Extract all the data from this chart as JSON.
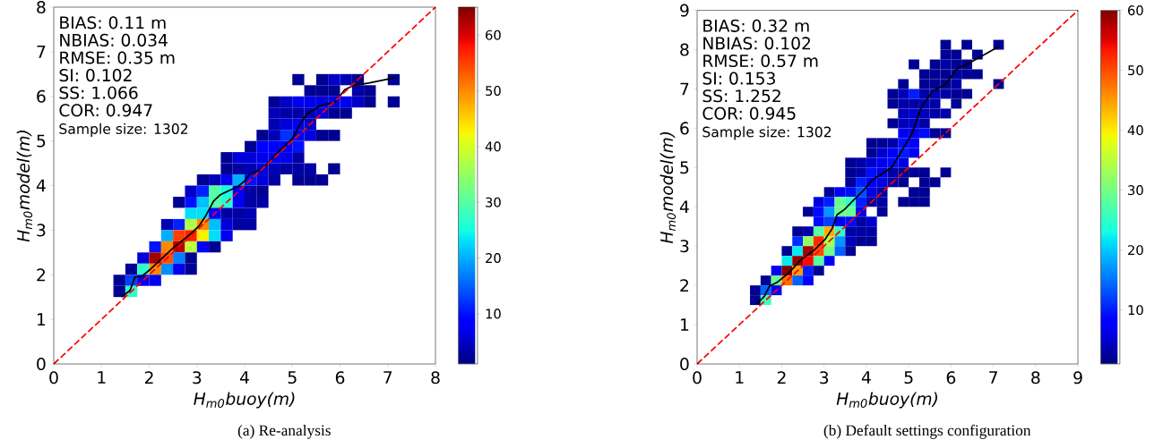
{
  "chart_data": [
    {
      "type": "heatmap",
      "title": "(a) Re-analysis",
      "xlabel": "H$_{m0}$buoy(m)",
      "ylabel": "H$_{m0}$model(m)",
      "annotations": [
        "BIAS: 0.11 m",
        "NBIAS: 0.034",
        "RMSE: 0.35 m",
        "SI: 0.102",
        "SS: 1.066",
        "COR: 0.947",
        "Sample size: 1302"
      ],
      "xlim": [
        0,
        8
      ],
      "ylim": [
        0,
        8
      ],
      "xticks": [
        0,
        1,
        2,
        3,
        4,
        5,
        6,
        7,
        8
      ],
      "yticks": [
        0,
        1,
        2,
        3,
        4,
        5,
        6,
        7,
        8
      ],
      "clim": [
        1,
        65
      ],
      "cticks": [
        10,
        20,
        30,
        40,
        50,
        60
      ],
      "x": [
        1.375,
        1.625,
        1.875,
        2.125,
        2.375,
        2.625,
        2.875,
        3.125,
        3.375,
        3.625,
        3.875,
        4.125,
        4.375,
        4.625,
        4.875,
        5.125,
        5.375,
        5.625,
        5.875,
        6.125,
        6.375,
        6.625,
        6.875,
        7.125
      ],
      "y": [
        6.375,
        6.125,
        5.875,
        5.625,
        5.375,
        5.125,
        4.875,
        4.625,
        4.375,
        4.125,
        3.875,
        3.625,
        3.375,
        3.125,
        2.875,
        2.625,
        2.375,
        2.125,
        1.875,
        1.625
      ],
      "cells": [
        [
          null,
          null,
          null,
          null,
          null,
          null,
          null,
          null,
          null,
          null,
          null,
          null,
          null,
          null,
          null,
          2,
          null,
          2,
          5,
          4,
          2,
          null,
          null,
          2
        ],
        [
          null,
          null,
          null,
          null,
          null,
          null,
          null,
          null,
          null,
          null,
          null,
          null,
          null,
          null,
          null,
          null,
          2,
          2,
          2,
          null,
          3,
          2,
          null,
          null
        ],
        [
          null,
          null,
          null,
          null,
          null,
          null,
          null,
          null,
          null,
          null,
          null,
          null,
          null,
          2,
          5,
          7,
          7,
          6,
          7,
          7,
          5,
          2,
          null,
          2
        ],
        [
          null,
          null,
          null,
          null,
          null,
          null,
          null,
          null,
          null,
          null,
          null,
          null,
          null,
          4,
          3,
          3,
          4,
          6,
          2,
          2,
          null,
          null,
          null,
          null
        ],
        [
          null,
          null,
          null,
          null,
          null,
          null,
          null,
          null,
          null,
          null,
          null,
          null,
          null,
          4,
          6,
          7,
          5,
          null,
          null,
          null,
          null,
          null,
          null,
          null
        ],
        [
          null,
          null,
          null,
          null,
          null,
          null,
          null,
          null,
          null,
          null,
          null,
          null,
          2,
          4,
          12,
          7,
          6,
          2,
          2,
          null,
          null,
          null,
          null,
          null
        ],
        [
          null,
          null,
          null,
          null,
          null,
          null,
          null,
          null,
          null,
          null,
          null,
          2,
          9,
          9,
          9,
          10,
          null,
          null,
          null,
          null,
          null,
          null,
          null,
          null
        ],
        [
          null,
          null,
          null,
          null,
          null,
          null,
          null,
          null,
          null,
          2,
          6,
          6,
          7,
          8,
          7,
          3,
          null,
          null,
          null,
          null,
          null,
          null,
          null,
          null
        ],
        [
          null,
          null,
          null,
          null,
          null,
          null,
          null,
          null,
          null,
          2,
          3,
          4,
          6,
          4,
          3,
          3,
          3,
          null,
          2,
          null,
          null,
          null,
          null,
          null
        ],
        [
          null,
          null,
          null,
          null,
          null,
          null,
          null,
          2,
          4,
          7,
          20,
          10,
          6,
          3,
          null,
          2,
          2,
          2,
          null,
          null,
          null,
          null,
          null,
          null
        ],
        [
          null,
          null,
          null,
          null,
          null,
          null,
          5,
          11,
          30,
          25,
          8,
          3,
          2,
          null,
          null,
          null,
          null,
          null,
          null,
          null,
          null,
          null,
          null,
          null
        ],
        [
          null,
          null,
          null,
          null,
          null,
          2,
          10,
          21,
          30,
          26,
          7,
          3,
          3,
          null,
          null,
          null,
          null,
          null,
          null,
          null,
          null,
          null,
          null,
          null
        ],
        [
          null,
          null,
          null,
          null,
          null,
          null,
          23,
          23,
          8,
          3,
          3,
          4,
          null,
          null,
          null,
          null,
          null,
          null,
          null,
          null,
          null,
          null,
          null,
          null
        ],
        [
          null,
          null,
          null,
          null,
          4,
          11,
          37,
          50,
          21,
          6,
          3,
          3,
          null,
          null,
          null,
          null,
          null,
          null,
          null,
          null,
          null,
          null,
          null,
          null
        ],
        [
          null,
          null,
          null,
          null,
          20,
          55,
          57,
          43,
          23,
          7,
          null,
          null,
          null,
          null,
          null,
          null,
          null,
          null,
          null,
          null,
          null,
          null,
          null,
          null
        ],
        [
          null,
          null,
          null,
          10,
          50,
          62,
          38,
          9,
          2,
          null,
          null,
          null,
          null,
          null,
          null,
          null,
          null,
          null,
          null,
          null,
          null,
          null,
          null,
          null
        ],
        [
          null,
          null,
          6,
          63,
          54,
          17,
          2,
          null,
          null,
          null,
          null,
          null,
          null,
          null,
          null,
          null,
          null,
          null,
          null,
          null,
          null,
          null,
          null,
          null
        ],
        [
          null,
          2,
          27,
          50,
          18,
          7,
          2,
          null,
          null,
          null,
          null,
          null,
          null,
          null,
          null,
          null,
          null,
          null,
          null,
          null,
          null,
          null,
          null,
          null
        ],
        [
          2,
          13,
          7,
          7,
          null,
          null,
          null,
          null,
          null,
          null,
          null,
          null,
          null,
          null,
          null,
          null,
          null,
          null,
          null,
          null,
          null,
          null,
          null,
          null
        ],
        [
          2,
          27,
          null,
          null,
          null,
          null,
          null,
          null,
          null,
          null,
          null,
          null,
          null,
          null,
          null,
          null,
          null,
          null,
          null,
          null,
          null,
          null,
          null,
          null
        ]
      ],
      "series": [
        {
          "type": "line",
          "color": "#000000",
          "x": [
            1.42,
            1.6,
            1.7,
            1.85,
            2.0,
            2.2,
            2.5,
            2.85,
            3.05,
            3.2,
            3.35,
            3.5,
            3.7,
            3.85,
            4.0,
            4.1,
            4.4,
            4.7,
            5.0,
            5.15,
            5.3,
            5.6,
            5.9,
            6.1,
            6.3,
            6.6,
            7.15
          ],
          "values": [
            1.5,
            1.65,
            1.95,
            1.97,
            2.1,
            2.3,
            2.6,
            2.9,
            3.1,
            3.35,
            3.65,
            3.8,
            3.9,
            3.97,
            4.1,
            4.25,
            4.4,
            4.75,
            5.05,
            5.35,
            5.6,
            5.8,
            5.87,
            6.15,
            6.25,
            6.3,
            6.42
          ]
        },
        {
          "type": "line",
          "color": "#ff0000",
          "line_style": "dashed",
          "x": [
            0,
            8
          ],
          "values": [
            0,
            8
          ]
        }
      ]
    },
    {
      "type": "heatmap",
      "title": "(b) Default settings configuration",
      "xlabel": "H$_{m0}$buoy(m)",
      "ylabel": "H$_{m0}$model(m)",
      "annotations": [
        "BIAS: 0.32 m",
        "NBIAS: 0.102",
        "RMSE: 0.57 m",
        "SI: 0.153",
        "SS: 1.252",
        "COR: 0.945",
        "Sample size: 1302"
      ],
      "xlim": [
        0,
        9
      ],
      "ylim": [
        0,
        9
      ],
      "xticks": [
        0,
        1,
        2,
        3,
        4,
        5,
        6,
        7,
        8,
        9
      ],
      "yticks": [
        0,
        1,
        2,
        3,
        4,
        5,
        6,
        7,
        8,
        9
      ],
      "clim": [
        1,
        60
      ],
      "cticks": [
        10,
        20,
        30,
        40,
        50,
        60
      ],
      "x": [
        1.375,
        1.625,
        1.875,
        2.125,
        2.375,
        2.625,
        2.875,
        3.125,
        3.375,
        3.625,
        3.875,
        4.125,
        4.375,
        4.625,
        4.875,
        5.125,
        5.375,
        5.625,
        5.875,
        6.125,
        6.375,
        6.625,
        6.875,
        7.125
      ],
      "y": [
        8.125,
        7.875,
        7.625,
        7.375,
        7.125,
        6.875,
        6.625,
        6.375,
        6.125,
        5.875,
        5.625,
        5.375,
        5.125,
        4.875,
        4.625,
        4.375,
        4.125,
        3.875,
        3.625,
        3.375,
        3.125,
        2.875,
        2.625,
        2.375,
        2.125,
        1.875,
        1.625
      ],
      "cells": [
        [
          null,
          null,
          null,
          null,
          null,
          null,
          null,
          null,
          null,
          null,
          null,
          null,
          null,
          null,
          null,
          null,
          null,
          null,
          2,
          null,
          2,
          null,
          null,
          2
        ],
        [
          null,
          null,
          null,
          null,
          null,
          null,
          null,
          null,
          null,
          null,
          null,
          null,
          null,
          null,
          null,
          null,
          null,
          null,
          2,
          2,
          null,
          2,
          null,
          null
        ],
        [
          null,
          null,
          null,
          null,
          null,
          null,
          null,
          null,
          null,
          null,
          null,
          null,
          null,
          null,
          null,
          2,
          null,
          2,
          3,
          2,
          2,
          null,
          null,
          null
        ],
        [
          null,
          null,
          null,
          null,
          null,
          null,
          null,
          null,
          null,
          null,
          null,
          null,
          null,
          null,
          null,
          null,
          2,
          2,
          2,
          3,
          2,
          2,
          null,
          null
        ],
        [
          null,
          null,
          null,
          null,
          null,
          null,
          null,
          null,
          null,
          null,
          null,
          null,
          null,
          null,
          2,
          null,
          2,
          2,
          2,
          3,
          null,
          null,
          null,
          2
        ],
        [
          null,
          null,
          null,
          null,
          null,
          null,
          null,
          null,
          null,
          null,
          null,
          null,
          null,
          2,
          4,
          10,
          3,
          4,
          3,
          2,
          2,
          null,
          null,
          null
        ],
        [
          null,
          null,
          null,
          null,
          null,
          null,
          null,
          null,
          null,
          null,
          null,
          null,
          null,
          2,
          3,
          3,
          4,
          3,
          null,
          2,
          null,
          null,
          null,
          null
        ],
        [
          null,
          null,
          null,
          null,
          null,
          null,
          null,
          null,
          null,
          null,
          null,
          null,
          null,
          null,
          4,
          5,
          4,
          3,
          3,
          null,
          null,
          null,
          null,
          null
        ],
        [
          null,
          null,
          null,
          null,
          null,
          null,
          null,
          null,
          null,
          null,
          null,
          null,
          null,
          2,
          4,
          5,
          3,
          null,
          null,
          null,
          null,
          null,
          null,
          null
        ],
        [
          null,
          null,
          null,
          null,
          null,
          null,
          null,
          null,
          null,
          null,
          null,
          null,
          null,
          null,
          7,
          6,
          9,
          2,
          2,
          null,
          null,
          null,
          null,
          null
        ],
        [
          null,
          null,
          null,
          null,
          null,
          null,
          null,
          null,
          null,
          null,
          null,
          2,
          2,
          3,
          9,
          8,
          null,
          null,
          null,
          null,
          null,
          null,
          null,
          null
        ],
        [
          null,
          null,
          null,
          null,
          null,
          null,
          null,
          null,
          null,
          null,
          null,
          2,
          5,
          7,
          10,
          7,
          null,
          null,
          null,
          null,
          null,
          null,
          null,
          null
        ],
        [
          null,
          null,
          null,
          null,
          null,
          null,
          null,
          null,
          null,
          2,
          3,
          5,
          7,
          9,
          6,
          null,
          null,
          null,
          null,
          null,
          null,
          null,
          null,
          null
        ],
        [
          null,
          null,
          null,
          null,
          null,
          null,
          null,
          null,
          null,
          2,
          3,
          9,
          6,
          3,
          2,
          2,
          2,
          null,
          2,
          null,
          null,
          null,
          null,
          null
        ],
        [
          null,
          null,
          null,
          null,
          null,
          null,
          null,
          null,
          null,
          2,
          10,
          8,
          6,
          3,
          2,
          null,
          2,
          2,
          null,
          null,
          null,
          null,
          null,
          null
        ],
        [
          null,
          null,
          null,
          null,
          null,
          null,
          null,
          2,
          7,
          9,
          13,
          6,
          3,
          null,
          null,
          2,
          2,
          null,
          null,
          null,
          null,
          null,
          null,
          null
        ],
        [
          null,
          null,
          null,
          null,
          null,
          null,
          6,
          10,
          29,
          25,
          10,
          3,
          3,
          null,
          2,
          2,
          2,
          null,
          null,
          null,
          null,
          null,
          null,
          null
        ],
        [
          null,
          null,
          null,
          null,
          null,
          2,
          9,
          17,
          29,
          29,
          7,
          null,
          2,
          null,
          null,
          null,
          null,
          null,
          null,
          null,
          null,
          null,
          null,
          null
        ],
        [
          null,
          null,
          null,
          null,
          null,
          null,
          9,
          12,
          7,
          9,
          3,
          5,
          null,
          null,
          null,
          null,
          null,
          null,
          null,
          null,
          null,
          null,
          null,
          null
        ],
        [
          null,
          null,
          null,
          null,
          2,
          3,
          28,
          44,
          25,
          3,
          3,
          3,
          null,
          null,
          null,
          null,
          null,
          null,
          null,
          null,
          null,
          null,
          null,
          null
        ],
        [
          null,
          null,
          null,
          null,
          11,
          32,
          52,
          34,
          17,
          4,
          2,
          2,
          null,
          null,
          null,
          null,
          null,
          null,
          null,
          null,
          null,
          null,
          null,
          null
        ],
        [
          null,
          null,
          null,
          2,
          22,
          58,
          50,
          30,
          14,
          2,
          null,
          null,
          null,
          null,
          null,
          null,
          null,
          null,
          null,
          null,
          null,
          null,
          null,
          null
        ],
        [
          null,
          null,
          null,
          22,
          59,
          54,
          28,
          7,
          null,
          null,
          null,
          null,
          null,
          null,
          null,
          null,
          null,
          null,
          null,
          null,
          null,
          null,
          null,
          null
        ],
        [
          null,
          null,
          7,
          60,
          45,
          10,
          2,
          null,
          null,
          null,
          null,
          null,
          null,
          null,
          null,
          null,
          null,
          null,
          null,
          null,
          null,
          null,
          null,
          null
        ],
        [
          null,
          2,
          29,
          48,
          14,
          8,
          null,
          null,
          null,
          null,
          null,
          null,
          null,
          null,
          null,
          null,
          null,
          null,
          null,
          null,
          null,
          null,
          null,
          null
        ],
        [
          2,
          14,
          7,
          null,
          null,
          null,
          null,
          null,
          null,
          null,
          null,
          null,
          null,
          null,
          null,
          null,
          null,
          null,
          null,
          null,
          null,
          null,
          null,
          null
        ],
        [
          2,
          26,
          null,
          null,
          null,
          null,
          null,
          null,
          null,
          null,
          null,
          null,
          null,
          null,
          null,
          null,
          null,
          null,
          null,
          null,
          null,
          null,
          null,
          null
        ]
      ],
      "series": [
        {
          "type": "line",
          "color": "#000000",
          "x": [
            1.41,
            1.59,
            1.71,
            1.88,
            2.17,
            2.45,
            2.78,
            3.03,
            3.19,
            3.31,
            3.48,
            3.68,
            3.97,
            4.13,
            4.38,
            4.59,
            4.79,
            5.08,
            5.28,
            5.57,
            5.86,
            6.13,
            6.47,
            7.15
          ],
          "values": [
            1.53,
            1.72,
            1.98,
            2.07,
            2.32,
            2.65,
            2.91,
            3.18,
            3.44,
            3.8,
            3.93,
            4.15,
            4.46,
            4.68,
            4.85,
            4.99,
            5.34,
            5.87,
            6.49,
            6.95,
            7.1,
            7.5,
            7.68,
            8.09
          ]
        },
        {
          "type": "line",
          "color": "#ff0000",
          "line_style": "dashed",
          "x": [
            0,
            9
          ],
          "values": [
            0,
            9
          ]
        }
      ]
    }
  ]
}
